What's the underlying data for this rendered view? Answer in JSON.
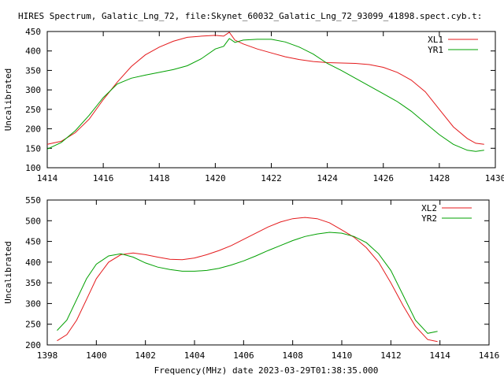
{
  "figure": {
    "title": "HIRES Spectrum, Galatic_Lng_72, file:Skynet_60032_Galatic_Lng_72_93099_41898.spect.cyb.t:",
    "xlabel": "Frequency(MHz) date 2023-03-29T01:38:35.000"
  },
  "chart_data": [
    {
      "type": "line",
      "title": "",
      "xlabel": "",
      "ylabel": "Uncalibrated",
      "xlim": [
        1414,
        1430
      ],
      "ylim": [
        100,
        450
      ],
      "xticks": [
        1414,
        1416,
        1418,
        1420,
        1422,
        1424,
        1426,
        1428,
        1430
      ],
      "yticks": [
        100,
        150,
        200,
        250,
        300,
        350,
        400,
        450
      ],
      "grid": false,
      "legend": "top-right",
      "series": [
        {
          "name": "XL1",
          "color": "#e41a1c",
          "x": [
            1414.0,
            1414.5,
            1415.0,
            1415.5,
            1416.0,
            1416.5,
            1417.0,
            1417.5,
            1418.0,
            1418.5,
            1419.0,
            1419.5,
            1420.0,
            1420.3,
            1420.5,
            1420.7,
            1421.0,
            1421.5,
            1422.0,
            1422.5,
            1423.0,
            1423.5,
            1424.0,
            1424.5,
            1425.0,
            1425.5,
            1426.0,
            1426.5,
            1427.0,
            1427.5,
            1428.0,
            1428.5,
            1429.0,
            1429.3,
            1429.6
          ],
          "values": [
            160,
            168,
            190,
            225,
            275,
            320,
            360,
            390,
            410,
            425,
            435,
            438,
            440,
            438,
            448,
            428,
            418,
            405,
            395,
            385,
            378,
            373,
            370,
            369,
            368,
            365,
            358,
            345,
            325,
            295,
            250,
            205,
            175,
            163,
            160
          ]
        },
        {
          "name": "YR1",
          "color": "#00a000",
          "x": [
            1414.0,
            1414.5,
            1415.0,
            1415.5,
            1416.0,
            1416.5,
            1417.0,
            1417.5,
            1418.0,
            1418.5,
            1419.0,
            1419.5,
            1420.0,
            1420.3,
            1420.5,
            1420.7,
            1421.0,
            1421.5,
            1422.0,
            1422.5,
            1423.0,
            1423.5,
            1424.0,
            1424.5,
            1425.0,
            1425.5,
            1426.0,
            1426.5,
            1427.0,
            1427.5,
            1428.0,
            1428.5,
            1429.0,
            1429.3,
            1429.6
          ],
          "values": [
            148,
            165,
            195,
            235,
            280,
            315,
            330,
            338,
            345,
            352,
            362,
            380,
            405,
            412,
            432,
            422,
            428,
            430,
            430,
            423,
            410,
            392,
            368,
            350,
            330,
            310,
            290,
            270,
            245,
            215,
            185,
            160,
            145,
            142,
            145
          ]
        }
      ]
    },
    {
      "type": "line",
      "title": "",
      "xlabel": "",
      "ylabel": "Uncalibrated",
      "xlim": [
        1398,
        1416
      ],
      "ylim": [
        200,
        550
      ],
      "xticks": [
        1398,
        1400,
        1402,
        1404,
        1406,
        1408,
        1410,
        1412,
        1414,
        1416
      ],
      "yticks": [
        200,
        250,
        300,
        350,
        400,
        450,
        500,
        550
      ],
      "grid": false,
      "legend": "top-right",
      "series": [
        {
          "name": "XL2",
          "color": "#e41a1c",
          "x": [
            1398.4,
            1398.8,
            1399.2,
            1399.6,
            1400.0,
            1400.5,
            1401.0,
            1401.5,
            1402.0,
            1402.5,
            1403.0,
            1403.5,
            1404.0,
            1404.5,
            1405.0,
            1405.5,
            1406.0,
            1406.5,
            1407.0,
            1407.5,
            1408.0,
            1408.5,
            1409.0,
            1409.5,
            1410.0,
            1410.5,
            1411.0,
            1411.5,
            1412.0,
            1412.5,
            1413.0,
            1413.5,
            1413.9
          ],
          "values": [
            210,
            225,
            260,
            310,
            360,
            400,
            418,
            422,
            418,
            412,
            407,
            406,
            410,
            418,
            428,
            440,
            455,
            470,
            485,
            497,
            505,
            508,
            505,
            495,
            478,
            460,
            435,
            400,
            350,
            295,
            245,
            213,
            208
          ]
        },
        {
          "name": "YR2",
          "color": "#00a000",
          "x": [
            1398.4,
            1398.8,
            1399.2,
            1399.6,
            1400.0,
            1400.5,
            1401.0,
            1401.5,
            1402.0,
            1402.5,
            1403.0,
            1403.5,
            1404.0,
            1404.5,
            1405.0,
            1405.5,
            1406.0,
            1406.5,
            1407.0,
            1407.5,
            1408.0,
            1408.5,
            1409.0,
            1409.5,
            1410.0,
            1410.5,
            1411.0,
            1411.5,
            1412.0,
            1412.5,
            1413.0,
            1413.5,
            1413.9
          ],
          "values": [
            235,
            260,
            310,
            360,
            395,
            415,
            420,
            412,
            398,
            388,
            382,
            378,
            378,
            380,
            385,
            393,
            403,
            415,
            428,
            440,
            452,
            462,
            468,
            472,
            470,
            462,
            447,
            420,
            380,
            320,
            260,
            228,
            233
          ]
        }
      ]
    }
  ]
}
